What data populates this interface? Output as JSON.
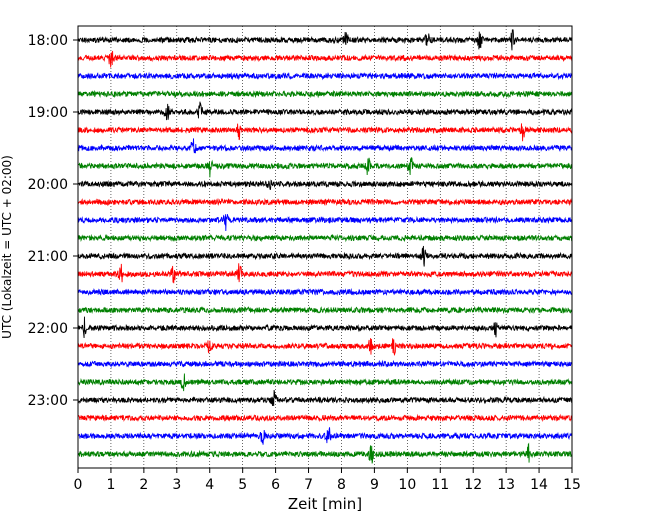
{
  "chart_data": {
    "type": "line",
    "title": "",
    "xlabel": "Zeit  [min]",
    "ylabel": "UTC (Lokalzeit = UTC + 02:00)",
    "xlim": [
      0,
      15
    ],
    "x_ticks": [
      0,
      1,
      2,
      3,
      4,
      5,
      6,
      7,
      8,
      9,
      10,
      11,
      12,
      13,
      14,
      15
    ],
    "y_ticks": [
      "18:00",
      "19:00",
      "20:00",
      "21:00",
      "22:00",
      "23:00"
    ],
    "grid": "vertical dotted",
    "legend": "none",
    "trace_minutes": 15,
    "series_colors": [
      "#000000",
      "#ff0000",
      "#0000ff",
      "#008000"
    ],
    "series": [
      {
        "start": "18:00",
        "events": [
          8.15,
          12.2,
          13.2,
          10.6
        ]
      },
      {
        "start": "18:15",
        "events": [
          1.0
        ]
      },
      {
        "start": "18:30",
        "events": []
      },
      {
        "start": "18:45",
        "events": []
      },
      {
        "start": "19:00",
        "events": [
          2.7,
          3.7
        ]
      },
      {
        "start": "19:15",
        "events": [
          4.9,
          13.5
        ]
      },
      {
        "start": "19:30",
        "events": [
          3.5
        ]
      },
      {
        "start": "19:45",
        "events": [
          4.0,
          8.8,
          10.1
        ]
      },
      {
        "start": "20:00",
        "events": [
          5.8
        ]
      },
      {
        "start": "20:15",
        "events": []
      },
      {
        "start": "20:30",
        "events": [
          4.5
        ]
      },
      {
        "start": "20:45",
        "events": []
      },
      {
        "start": "21:00",
        "events": [
          10.5
        ]
      },
      {
        "start": "21:15",
        "events": [
          1.3,
          2.9,
          4.9
        ]
      },
      {
        "start": "21:30",
        "events": []
      },
      {
        "start": "21:45",
        "events": []
      },
      {
        "start": "22:00",
        "events": [
          0.2,
          12.7
        ]
      },
      {
        "start": "22:15",
        "events": [
          4.0,
          8.9,
          9.6
        ]
      },
      {
        "start": "22:30",
        "events": []
      },
      {
        "start": "22:45",
        "events": [
          3.2
        ]
      },
      {
        "start": "23:00",
        "events": [
          5.95
        ]
      },
      {
        "start": "23:15",
        "events": []
      },
      {
        "start": "23:30",
        "events": [
          5.6,
          7.6
        ]
      },
      {
        "start": "23:45",
        "events": [
          8.9,
          13.7
        ]
      }
    ]
  }
}
